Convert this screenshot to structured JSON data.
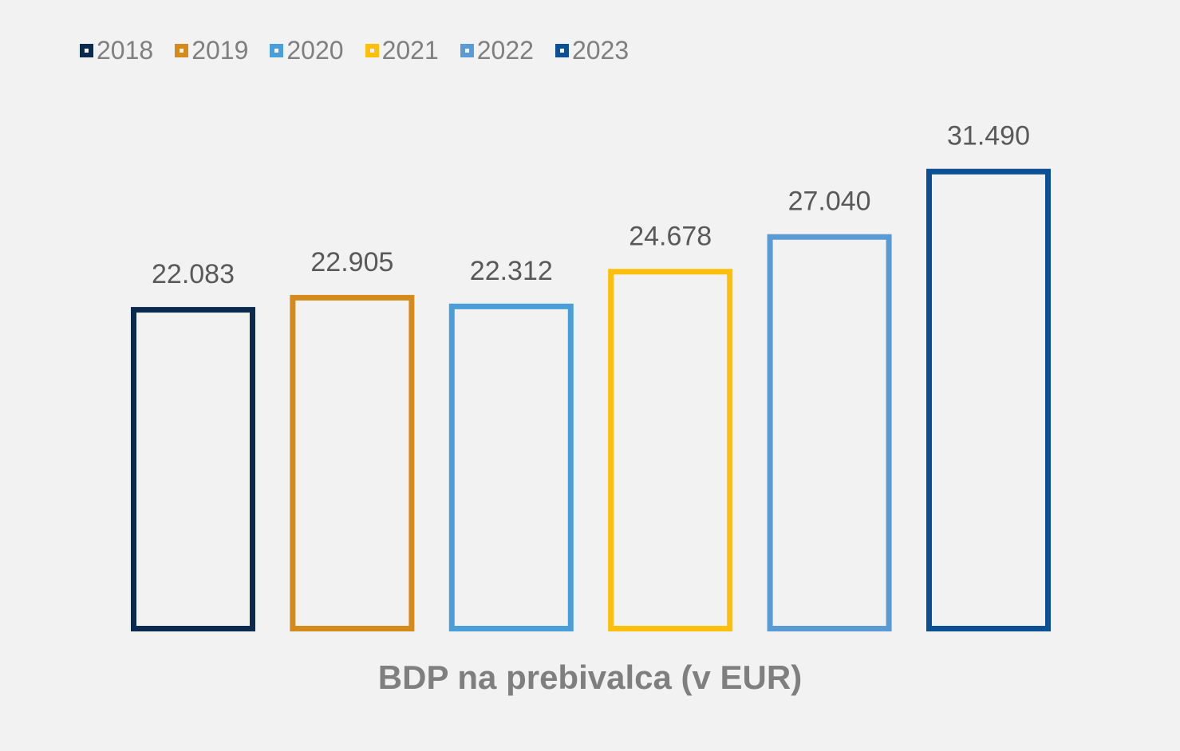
{
  "chart_data": {
    "type": "bar",
    "title": "",
    "xlabel": "BDP na prebivalca (v EUR)",
    "ylabel": "",
    "categories": [
      "BDP na prebivalca (v EUR)"
    ],
    "ylim": [
      0,
      35000
    ],
    "grid": false,
    "legend_position": "top-left",
    "series": [
      {
        "name": "2018",
        "values": [
          22083
        ],
        "label": "22.083",
        "color": "#0c2a4d"
      },
      {
        "name": "2019",
        "values": [
          22905
        ],
        "label": "22.905",
        "color": "#d48b1c"
      },
      {
        "name": "2020",
        "values": [
          22312
        ],
        "label": "22.312",
        "color": "#4a9fd8"
      },
      {
        "name": "2021",
        "values": [
          24678
        ],
        "label": "24.678",
        "color": "#fbbf0c"
      },
      {
        "name": "2022",
        "values": [
          27040
        ],
        "label": "27.040",
        "color": "#5b9bd5"
      },
      {
        "name": "2023",
        "values": [
          31490
        ],
        "label": "31.490",
        "color": "#0b4f94"
      }
    ]
  },
  "colors": {
    "background": "#f2f2f2",
    "label_text": "#595959",
    "axis_title_text": "#7f7f7f"
  }
}
